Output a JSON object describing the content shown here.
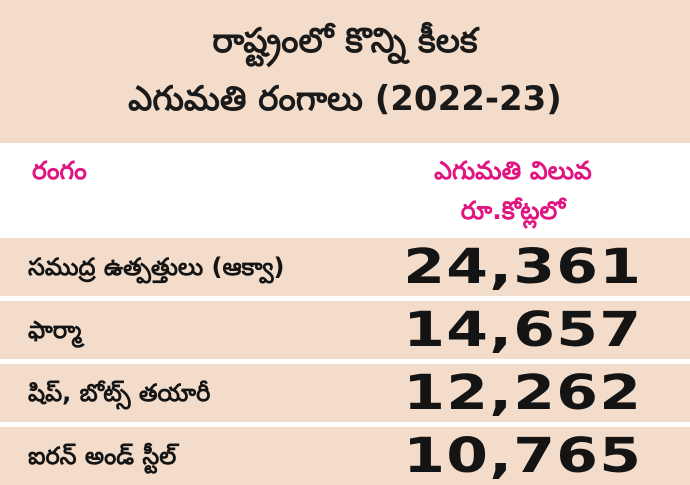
{
  "title": {
    "line1": "రాష్ట్రంలో కొన్ని కీలక",
    "line2": "ఎగుమతి రంగాలు (2022-23)"
  },
  "header": {
    "sector_label": "రంగం",
    "value_label": "ఎగుమతి విలువ",
    "unit_label": "రూ.కోట్లలో"
  },
  "rows": [
    {
      "sector": "సముద్ర ఉత్పత్తులు (ఆక్వా)",
      "value": "24,361"
    },
    {
      "sector": "ఫార్మా",
      "value": "14,657"
    },
    {
      "sector": "షిప్, బోట్స్ తయారీ",
      "value": "12,262"
    },
    {
      "sector": "ఐరన్ అండ్ స్టీల్",
      "value": "10,765"
    }
  ],
  "colors": {
    "band": "#f3dcc9",
    "header_text": "#e0157f",
    "body_text": "#141414"
  }
}
